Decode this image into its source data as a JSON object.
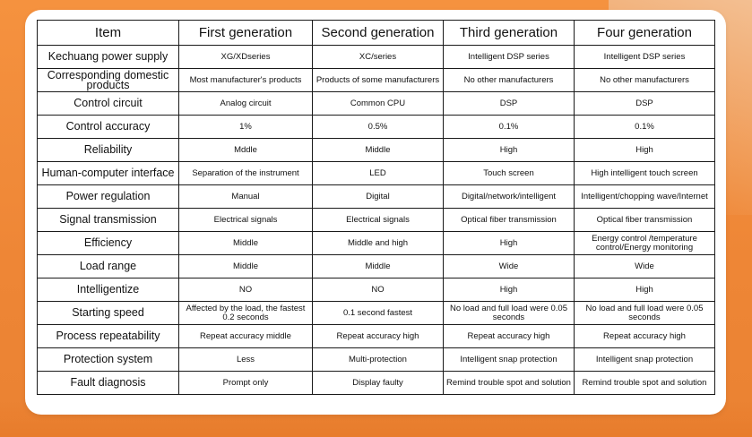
{
  "colors": {
    "background": "#f0883a",
    "card": "#ffffff",
    "border": "#1a1a1a"
  },
  "table": {
    "headers": [
      "Item",
      "First generation",
      "Second generation",
      "Third generation",
      "Four generation"
    ],
    "rows": [
      [
        "Kechuang power supply",
        "XG/XDseries",
        "XC/series",
        "Intelligent DSP series",
        "Intelligent DSP series"
      ],
      [
        "Corresponding domestic products",
        "Most manufacturer's products",
        "Products of some manufacturers",
        "No other manufacturers",
        "No other manufacturers"
      ],
      [
        "Control circuit",
        "Analog circuit",
        "Common CPU",
        "DSP",
        "DSP"
      ],
      [
        "Control accuracy",
        "1%",
        "0.5%",
        "0.1%",
        "0.1%"
      ],
      [
        "Reliability",
        "Mddle",
        "Middle",
        "High",
        "High"
      ],
      [
        "Human-computer interface",
        "Separation of the instrument",
        "LED",
        "Touch screen",
        "High intelligent touch screen"
      ],
      [
        "Power regulation",
        "Manual",
        "Digital",
        "Digital/network/intelligent",
        "Intelligent/chopping wave/Internet"
      ],
      [
        "Signal transmission",
        "Electrical signals",
        "Electrical signals",
        "Optical fiber transmission",
        "Optical fiber transmission"
      ],
      [
        "Efficiency",
        "Middle",
        "Middle and high",
        "High",
        "Energy control /temperature control/Energy monitoring"
      ],
      [
        "Load range",
        "Middle",
        "Middle",
        "Wide",
        "Wide"
      ],
      [
        "Intelligentize",
        "NO",
        "NO",
        "High",
        "High"
      ],
      [
        "Starting speed",
        "Affected by the load, the fastest 0.2 seconds",
        "0.1 second fastest",
        "No load and full load were 0.05 seconds",
        "No load and full load were 0.05 seconds"
      ],
      [
        "Process repeatability",
        "Repeat accuracy middle",
        "Repeat accuracy high",
        "Repeat accuracy high",
        "Repeat accuracy high"
      ],
      [
        "Protection system",
        "Less",
        "Multi-protection",
        "Intelligent snap protection",
        "Intelligent snap protection"
      ],
      [
        "Fault diagnosis",
        "Prompt only",
        "Display faulty",
        "Remind trouble spot and solution",
        "Remind trouble spot and solution"
      ]
    ]
  }
}
